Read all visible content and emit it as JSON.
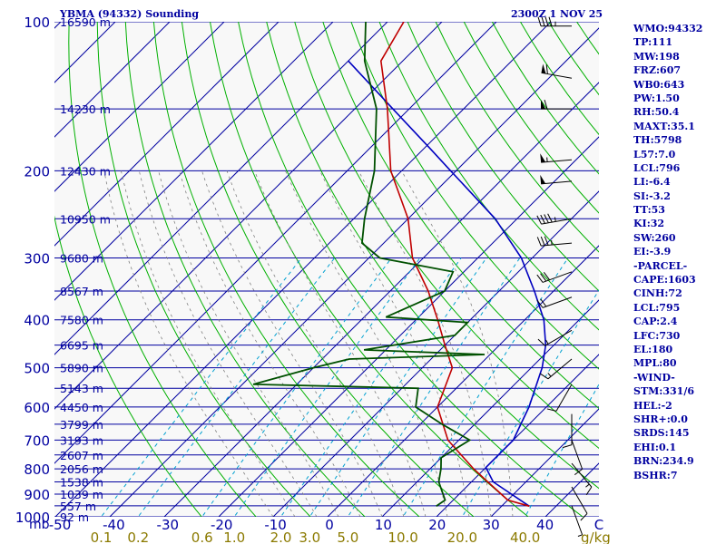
{
  "header": {
    "station_title": "YBMA (94332) Sounding",
    "time_label": "2300Z  1 NOV 25"
  },
  "indices": [
    "WMO:94332",
    "TP:111",
    "MW:198",
    "FRZ:607",
    "WB0:643",
    "PW:1.50",
    "RH:50.4",
    "MAXT:35.1",
    "TH:5798",
    "L57:7.0",
    "LCL:796",
    "LI:-6.4",
    "SI:-3.2",
    "TT:53",
    "KI:32",
    "SW:260",
    "EI:-3.9",
    "-PARCEL-",
    "CAPE:1603",
    "CINH:72",
    "LCL:795",
    "CAP:2.4",
    "LFC:730",
    "EL:180",
    "MPL:80",
    "-WIND-",
    "STM:331/6",
    "HEL:-2",
    "SHR+:0.0",
    "SRDS:145",
    "EHI:0.1",
    "BRN:234.9",
    "BSHR:7"
  ],
  "colors": {
    "background": "#f8f8f8",
    "isobar": "#0000a0",
    "isotherm": "#0000a0",
    "dry_adiabat": "#00b000",
    "moist_adiabat": "#808080",
    "mixing_ratio": "#00a0d0",
    "temperature": "#c00000",
    "dewpoint": "#005000",
    "parcel": "#0000c0",
    "wind_barb": "#000000",
    "axis_text": "#0000a0",
    "mixing_text": "#8b7a00"
  },
  "chart_data": {
    "type": "skew-t",
    "yscale": "log",
    "ylim": [
      1000,
      100
    ],
    "xlim": [
      -50,
      50
    ],
    "ylabel_unit": "mb",
    "x2label_unit": "g/kg",
    "pressure_ticks": [
      100,
      200,
      300,
      400,
      500,
      600,
      700,
      800,
      900,
      1000
    ],
    "temperature_ticks": [
      "-50",
      "-40",
      "-30",
      "-20",
      "-10",
      "0",
      "10",
      "20",
      "30",
      "40",
      "C"
    ],
    "mixing_ratio_ticks": [
      "0.1",
      "0.2",
      "0.6",
      "1.0",
      "2.0",
      "3.0",
      "5.0",
      "10.0",
      "20.0",
      "40.0"
    ],
    "height_levels": [
      {
        "p": 100,
        "h": "16590 m"
      },
      {
        "p": 150,
        "h": "14230 m"
      },
      {
        "p": 200,
        "h": "12430 m"
      },
      {
        "p": 250,
        "h": "10950 m"
      },
      {
        "p": 300,
        "h": "9680 m"
      },
      {
        "p": 350,
        "h": "8567 m"
      },
      {
        "p": 400,
        "h": "7580 m"
      },
      {
        "p": 450,
        "h": "6695 m"
      },
      {
        "p": 500,
        "h": "5890 m"
      },
      {
        "p": 550,
        "h": "5143 m"
      },
      {
        "p": 600,
        "h": "4450 m"
      },
      {
        "p": 650,
        "h": "3799 m"
      },
      {
        "p": 700,
        "h": "3193 m"
      },
      {
        "p": 750,
        "h": "2607 m"
      },
      {
        "p": 800,
        "h": "2056 m"
      },
      {
        "p": 850,
        "h": "1538 m"
      },
      {
        "p": 900,
        "h": "1039 m"
      },
      {
        "p": 950,
        "h": "557 m"
      },
      {
        "p": 1000,
        "h": "92 m"
      }
    ],
    "temperature": [
      [
        952,
        35.1
      ],
      [
        925,
        30.0
      ],
      [
        850,
        23.0
      ],
      [
        800,
        18.0
      ],
      [
        700,
        8.0
      ],
      [
        600,
        0.0
      ],
      [
        500,
        -4.5
      ],
      [
        450,
        -10.0
      ],
      [
        400,
        -16.0
      ],
      [
        350,
        -23.0
      ],
      [
        300,
        -32.0
      ],
      [
        250,
        -40.0
      ],
      [
        200,
        -52.0
      ],
      [
        150,
        -64.0
      ],
      [
        120,
        -74.0
      ],
      [
        100,
        -77.0
      ]
    ],
    "dewpoint": [
      [
        952,
        18.0
      ],
      [
        925,
        18.5
      ],
      [
        850,
        14.0
      ],
      [
        800,
        12.0
      ],
      [
        760,
        10.0
      ],
      [
        700,
        12.0
      ],
      [
        650,
        4.0
      ],
      [
        600,
        -4.0
      ],
      [
        550,
        -7.0
      ],
      [
        540,
        -38.0
      ],
      [
        500,
        -30.0
      ],
      [
        480,
        -25.0
      ],
      [
        470,
        -1.0
      ],
      [
        460,
        -24.0
      ],
      [
        430,
        -10.0
      ],
      [
        405,
        -10.0
      ],
      [
        395,
        -26.0
      ],
      [
        350,
        -20.0
      ],
      [
        320,
        -22.0
      ],
      [
        300,
        -38.0
      ],
      [
        280,
        -44.0
      ],
      [
        250,
        -48.0
      ],
      [
        200,
        -55.0
      ],
      [
        150,
        -66.0
      ],
      [
        120,
        -77.0
      ],
      [
        100,
        -84.0
      ]
    ],
    "parcel": [
      [
        952,
        35.1
      ],
      [
        850,
        24.0
      ],
      [
        795,
        20.0
      ],
      [
        700,
        20.0
      ],
      [
        600,
        16.8
      ],
      [
        500,
        12.0
      ],
      [
        450,
        8.5
      ],
      [
        400,
        3.5
      ],
      [
        350,
        -3.5
      ],
      [
        300,
        -12.0
      ],
      [
        250,
        -24.0
      ],
      [
        200,
        -41.0
      ],
      [
        180,
        -49.0
      ],
      [
        150,
        -63.0
      ],
      [
        120,
        -80.0
      ]
    ],
    "wind_barbs": [
      {
        "p": 102,
        "speed": 45,
        "dir": 270
      },
      {
        "p": 130,
        "speed": 60,
        "dir": 280
      },
      {
        "p": 150,
        "speed": 60,
        "dir": 270
      },
      {
        "p": 190,
        "speed": 55,
        "dir": 265
      },
      {
        "p": 210,
        "speed": 50,
        "dir": 265
      },
      {
        "p": 250,
        "speed": 45,
        "dir": 260
      },
      {
        "p": 280,
        "speed": 35,
        "dir": 265
      },
      {
        "p": 320,
        "speed": 30,
        "dir": 250
      },
      {
        "p": 360,
        "speed": 20,
        "dir": 250
      },
      {
        "p": 420,
        "speed": 15,
        "dir": 240
      },
      {
        "p": 480,
        "speed": 15,
        "dir": 230
      },
      {
        "p": 540,
        "speed": 10,
        "dir": 210
      },
      {
        "p": 620,
        "speed": 10,
        "dir": 180
      },
      {
        "p": 700,
        "speed": 10,
        "dir": 160
      },
      {
        "p": 780,
        "speed": 15,
        "dir": 140
      },
      {
        "p": 870,
        "speed": 10,
        "dir": 150
      },
      {
        "p": 950,
        "speed": 5,
        "dir": 160
      }
    ]
  }
}
